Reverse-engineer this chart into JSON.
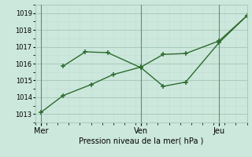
{
  "xlabel": "Pression niveau de la mer( hPa )",
  "bg_color": "#cce8dd",
  "grid_color_major": "#aaccbb",
  "grid_color_minor": "#c4ddd4",
  "line_color": "#2d6b2d",
  "ylim": [
    1012.5,
    1019.5
  ],
  "yticks": [
    1013,
    1014,
    1015,
    1016,
    1017,
    1018,
    1019
  ],
  "xlim": [
    -0.5,
    18.5
  ],
  "vline_positions": [
    0.0,
    9.0,
    16.0
  ],
  "xtick_positions": [
    0.0,
    9.0,
    16.0
  ],
  "xtick_labels": [
    "Mer",
    "Ven",
    "Jeu"
  ],
  "line1_x": [
    0.0,
    2.0,
    4.5,
    6.5,
    9.0,
    11.0,
    13.0,
    16.0,
    18.5
  ],
  "line1_y": [
    1013.1,
    1014.1,
    1014.75,
    1015.35,
    1015.8,
    1016.55,
    1016.6,
    1017.35,
    1018.85
  ],
  "line2_x": [
    2.0,
    4.0,
    6.0,
    9.0,
    11.0,
    13.0,
    16.0,
    18.5
  ],
  "line2_y": [
    1015.85,
    1016.7,
    1016.65,
    1015.75,
    1014.65,
    1014.9,
    1017.25,
    1018.85
  ],
  "marker_size": 4,
  "linewidth": 1.0,
  "ylabel_fontsize": 6,
  "xlabel_fontsize": 7,
  "xtick_fontsize": 7
}
